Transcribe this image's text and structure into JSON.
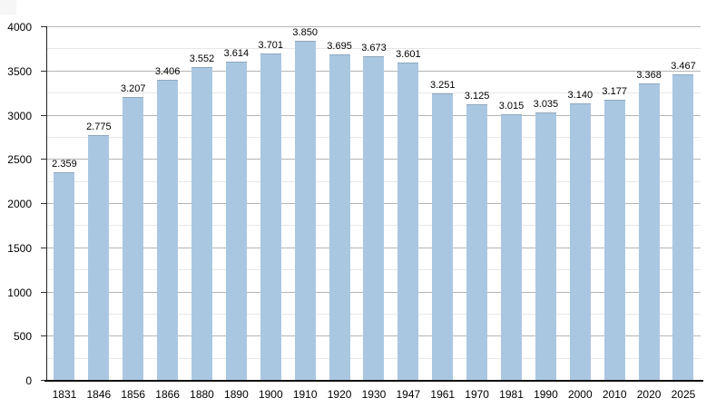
{
  "page": {
    "background": "#ffffff"
  },
  "chart_data": {
    "type": "bar",
    "title": "",
    "xlabel": "",
    "ylabel": "",
    "categories": [
      "1831",
      "1846",
      "1856",
      "1866",
      "1880",
      "1890",
      "1900",
      "1910",
      "1920",
      "1930",
      "1947",
      "1961",
      "1970",
      "1981",
      "1990",
      "2000",
      "2010",
      "2020",
      "2025"
    ],
    "values": [
      2359,
      2775,
      3207,
      3406,
      3552,
      3614,
      3701,
      3850,
      3695,
      3673,
      3601,
      3251,
      3125,
      3015,
      3035,
      3140,
      3177,
      3368,
      3467
    ],
    "bar_labels": [
      "2.359",
      "2.775",
      "3.207",
      "3.406",
      "3.552",
      "3.614",
      "3.701",
      "3.850",
      "3.695",
      "3.673",
      "3.601",
      "3.251",
      "3.125",
      "3.015",
      "3.035",
      "3.140",
      "3.177",
      "3.368",
      "3.467"
    ],
    "ylim": [
      0,
      4000
    ],
    "y_ticks": [
      0,
      500,
      1000,
      1500,
      2000,
      2500,
      3000,
      3500,
      4000
    ],
    "minor_grid_step": 250,
    "major_grid_step": 500,
    "grid": "on",
    "legend": "none",
    "colors": {
      "bar_fill": "#aac7e2",
      "bar_edge": "#8fa8bd",
      "major_grid": "#b5b5b5",
      "minor_grid": "#e7e7e7",
      "axis": "#111111",
      "label_text": "#000000"
    }
  }
}
